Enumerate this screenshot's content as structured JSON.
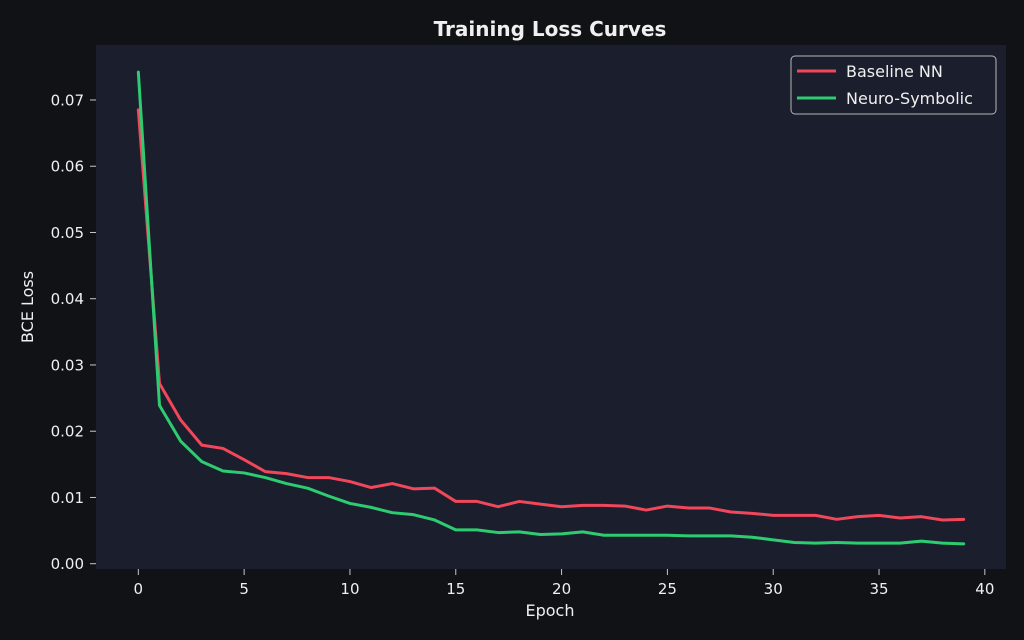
{
  "chart_data": {
    "type": "line",
    "title": "Training Loss Curves",
    "xlabel": "Epoch",
    "ylabel": "BCE Loss",
    "xlim": [
      -2,
      41
    ],
    "ylim": [
      -0.0008,
      0.0783
    ],
    "xticks": [
      0,
      5,
      10,
      15,
      20,
      25,
      30,
      35,
      40
    ],
    "yticks": [
      0.0,
      0.01,
      0.02,
      0.03,
      0.04,
      0.05,
      0.06,
      0.07
    ],
    "ytick_labels": [
      "0.00",
      "0.01",
      "0.02",
      "0.03",
      "0.04",
      "0.05",
      "0.06",
      "0.07"
    ],
    "grid": false,
    "legend_position": "top-right",
    "x": [
      0,
      1,
      2,
      3,
      4,
      5,
      6,
      7,
      8,
      9,
      10,
      11,
      12,
      13,
      14,
      15,
      16,
      17,
      18,
      19,
      20,
      21,
      22,
      23,
      24,
      25,
      26,
      27,
      28,
      29,
      30,
      31,
      32,
      33,
      34,
      35,
      36,
      37,
      38,
      39
    ],
    "series": [
      {
        "name": "Baseline NN",
        "color": "#f0475a",
        "values": [
          0.0685,
          0.0272,
          0.0217,
          0.0179,
          0.0174,
          0.0157,
          0.0139,
          0.0136,
          0.013,
          0.013,
          0.0124,
          0.0115,
          0.0121,
          0.0113,
          0.0114,
          0.0094,
          0.0094,
          0.0086,
          0.0094,
          0.009,
          0.0086,
          0.0088,
          0.0088,
          0.0087,
          0.0081,
          0.0087,
          0.0084,
          0.0084,
          0.0078,
          0.0076,
          0.0073,
          0.0073,
          0.0073,
          0.0067,
          0.0071,
          0.0073,
          0.0069,
          0.0071,
          0.0066,
          0.0067
        ]
      },
      {
        "name": "Neuro-Symbolic",
        "color": "#2ecc71",
        "values": [
          0.0742,
          0.0239,
          0.0185,
          0.0154,
          0.014,
          0.0137,
          0.013,
          0.0121,
          0.0114,
          0.0102,
          0.0091,
          0.0085,
          0.0077,
          0.0074,
          0.0066,
          0.0051,
          0.0051,
          0.0047,
          0.0048,
          0.0044,
          0.0045,
          0.0048,
          0.0043,
          0.0043,
          0.0043,
          0.0043,
          0.0042,
          0.0042,
          0.0042,
          0.004,
          0.0036,
          0.0032,
          0.0031,
          0.0032,
          0.0031,
          0.0031,
          0.0031,
          0.0034,
          0.0031,
          0.003
        ]
      }
    ]
  },
  "colors": {
    "figure_bg": "#111216",
    "plot_bg": "#1b1e2d",
    "text": "#f0f0f0",
    "tick": "#c8c8c8",
    "axis": "#aaaaaa"
  }
}
